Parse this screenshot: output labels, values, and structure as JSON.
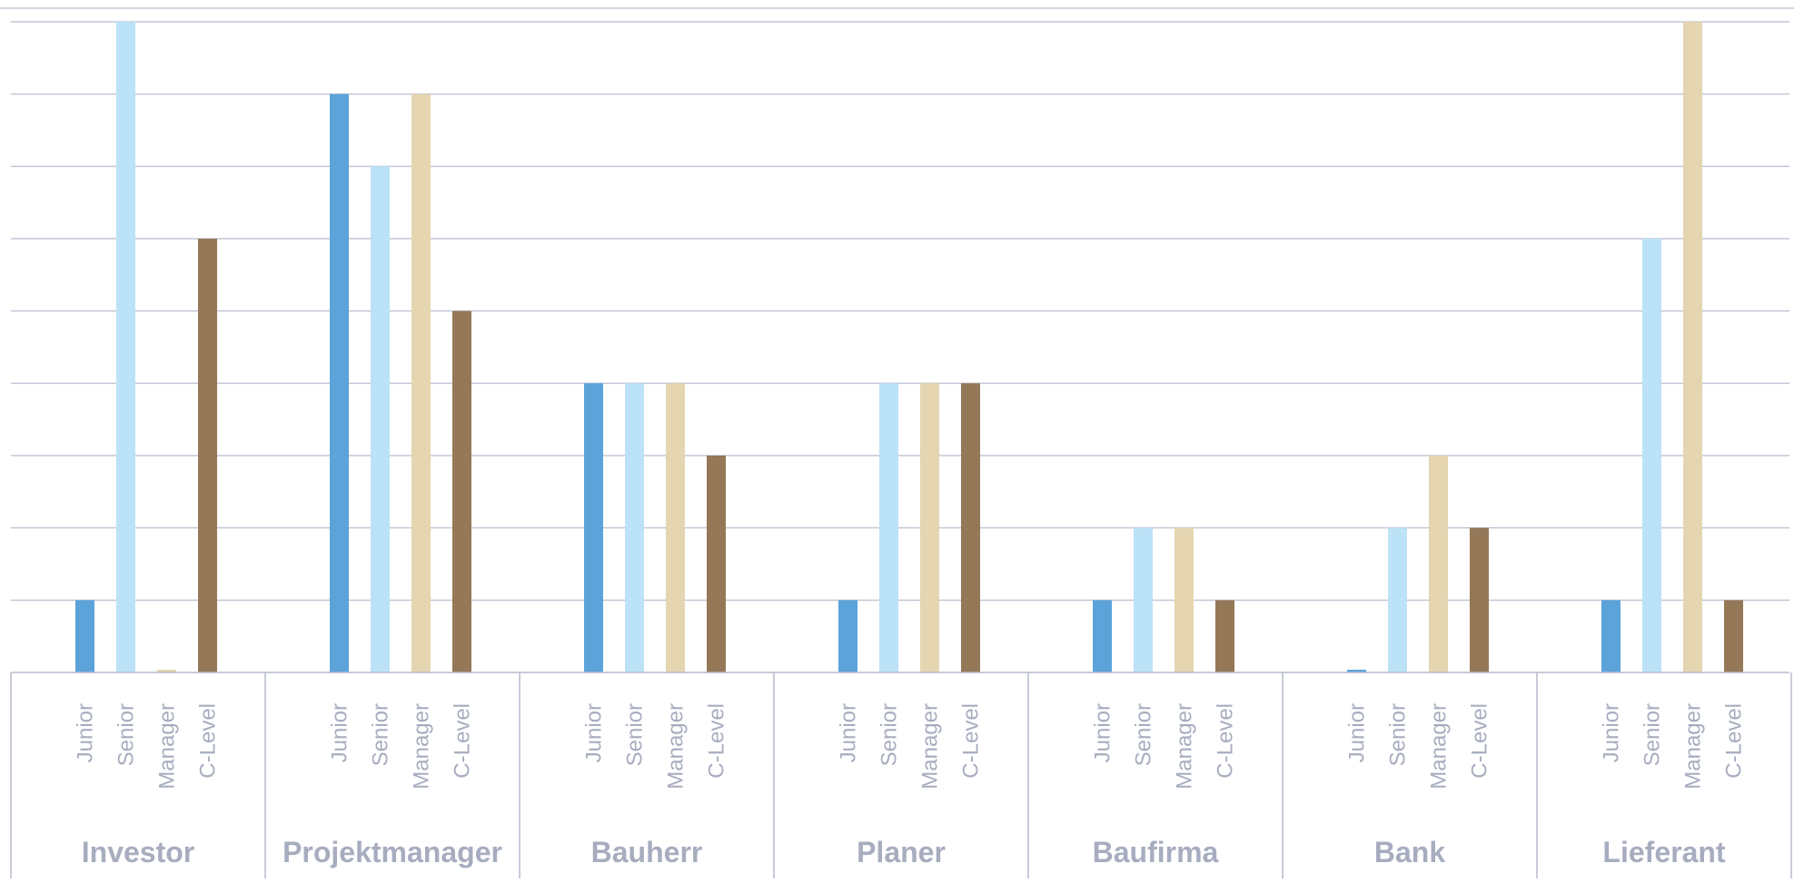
{
  "chart_data": {
    "type": "bar",
    "title": "",
    "xlabel": "",
    "ylabel": "",
    "ylim": [
      0,
      9
    ],
    "grid": true,
    "legend": "none",
    "subcategories": [
      "Junior",
      "Senior",
      "Manager",
      "C-Level"
    ],
    "colors": {
      "Junior": "#5ba3d9",
      "Senior": "#bce2f7",
      "Manager": "#e5d5b0",
      "C-Level": "#957857"
    },
    "groups": [
      {
        "name": "Investor",
        "values": [
          1,
          9,
          0.02,
          6
        ]
      },
      {
        "name": "Projektmanager",
        "values": [
          8,
          7,
          8,
          5
        ]
      },
      {
        "name": "Bauherr",
        "values": [
          4,
          4,
          4,
          3
        ]
      },
      {
        "name": "Planer",
        "values": [
          1,
          4,
          4,
          4
        ]
      },
      {
        "name": "Baufirma",
        "values": [
          1,
          2,
          2,
          1
        ]
      },
      {
        "name": "Bank",
        "values": [
          0.02,
          2,
          3,
          2
        ]
      },
      {
        "name": "Lieferant",
        "values": [
          1,
          6,
          9,
          1
        ]
      }
    ]
  }
}
